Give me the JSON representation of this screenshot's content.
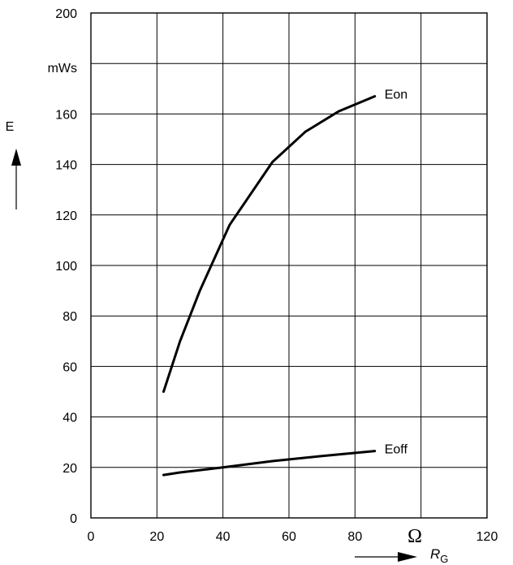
{
  "chart_data": {
    "type": "line",
    "x_ticks": [
      "0",
      "20",
      "40",
      "60",
      "80",
      "120"
    ],
    "y_ticks": [
      "0",
      "20",
      "40",
      "60",
      "80",
      "100",
      "120",
      "140",
      "160",
      "200"
    ],
    "y_unit": "mWs",
    "ylabel": "E",
    "xlabel_symbol": "R",
    "xlabel_subscript": "G",
    "x_unit": "Ω",
    "xlim": [
      0,
      120
    ],
    "ylim": [
      0,
      200
    ],
    "grid": true,
    "series": [
      {
        "name": "Eon",
        "x": [
          22,
          27,
          33,
          42,
          55,
          65,
          75,
          86
        ],
        "y": [
          50,
          70,
          90,
          116,
          141,
          153,
          161,
          167
        ]
      },
      {
        "name": "Eoff",
        "x": [
          22,
          27,
          40,
          55,
          70,
          86
        ],
        "y": [
          17,
          18,
          20,
          22.5,
          24.5,
          26.5
        ]
      }
    ]
  }
}
